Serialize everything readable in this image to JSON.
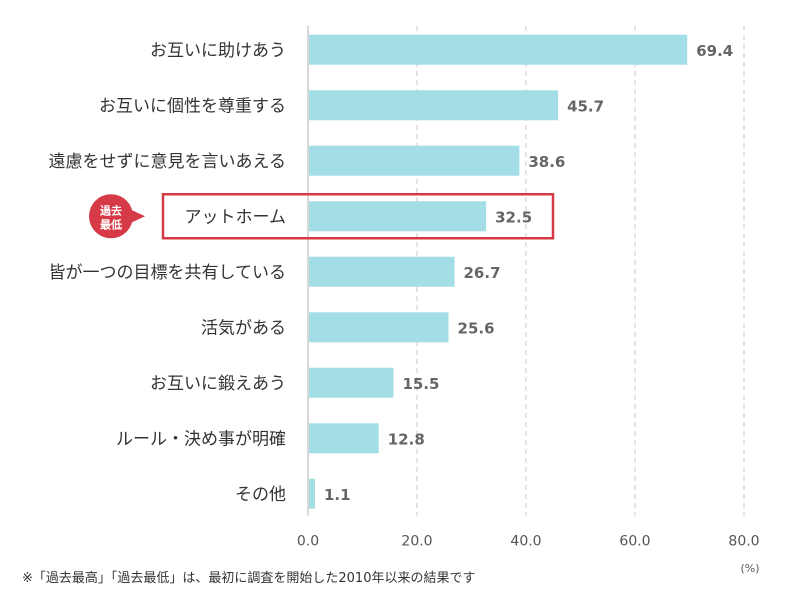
{
  "chart_data": {
    "type": "bar",
    "orientation": "horizontal",
    "categories": [
      "お互いに助けあう",
      "お互いに個性を尊重する",
      "遠慮をせずに意見を言いあえる",
      "アットホーム",
      "皆が一つの目標を共有している",
      "活気がある",
      "お互いに鍛えあう",
      "ルール・決め事が明確",
      "その他"
    ],
    "values": [
      69.4,
      45.7,
      38.6,
      32.5,
      26.7,
      25.6,
      15.5,
      12.8,
      1.1
    ],
    "value_labels": [
      "69.4",
      "45.7",
      "38.6",
      "32.5",
      "26.7",
      "25.6",
      "15.5",
      "12.8",
      "1.1"
    ],
    "xlim": [
      0,
      80
    ],
    "xticks": [
      "0.0",
      "20.0",
      "40.0",
      "60.0",
      "80.0"
    ],
    "xunit": "(%)",
    "grid": "vertical-dashed",
    "bar_color": "#a3dee6",
    "highlight": {
      "category": "アットホーム",
      "box_color": "#d63a46",
      "badge_lines": [
        "過去",
        "最低"
      ],
      "badge_color": "#d63a46"
    }
  },
  "footnote": "※「過去最高」「過去最低」は、最初に調査を開始した2010年以来の結果です"
}
